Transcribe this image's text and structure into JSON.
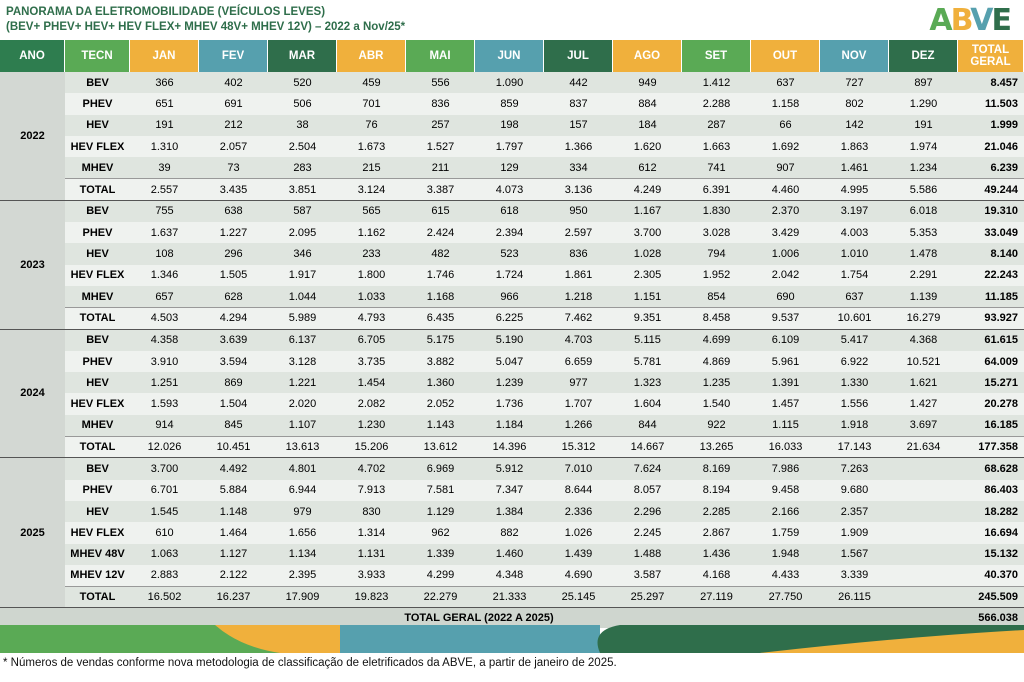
{
  "title": {
    "line1": "PANORAMA DA ELETROMOBILIDADE (VEÍCULOS LEVES)",
    "line2": "(BEV+ PHEV+ HEV+ HEV FLEX+ MHEV 48V+ MHEV 12V) – 2022 a Nov/25*"
  },
  "logo": "ABVE",
  "header": [
    "ANO",
    "TECN",
    "JAN",
    "FEV",
    "MAR",
    "ABR",
    "MAI",
    "JUN",
    "JUL",
    "AGO",
    "SET",
    "OUT",
    "NOV",
    "DEZ",
    "TOTAL GERAL"
  ],
  "header_colors": [
    "#2e7d4f",
    "#5aaa55",
    "#f0b03c",
    "#56a0ae",
    "#2f6e4b",
    "#f0b03c",
    "#5aaa55",
    "#56a0ae",
    "#2f6e4b",
    "#f0b03c",
    "#5aaa55",
    "#f0b03c",
    "#56a0ae",
    "#2f6e4b",
    "#f0b03c"
  ],
  "years": [
    {
      "year": "2022",
      "rows": [
        {
          "tecn": "BEV",
          "values": [
            "366",
            "402",
            "520",
            "459",
            "556",
            "1.090",
            "442",
            "949",
            "1.412",
            "637",
            "727",
            "897"
          ],
          "total": "8.457"
        },
        {
          "tecn": "PHEV",
          "values": [
            "651",
            "691",
            "506",
            "701",
            "836",
            "859",
            "837",
            "884",
            "2.288",
            "1.158",
            "802",
            "1.290"
          ],
          "total": "11.503"
        },
        {
          "tecn": "HEV",
          "values": [
            "191",
            "212",
            "38",
            "76",
            "257",
            "198",
            "157",
            "184",
            "287",
            "66",
            "142",
            "191"
          ],
          "total": "1.999"
        },
        {
          "tecn": "HEV FLEX",
          "values": [
            "1.310",
            "2.057",
            "2.504",
            "1.673",
            "1.527",
            "1.797",
            "1.366",
            "1.620",
            "1.663",
            "1.692",
            "1.863",
            "1.974"
          ],
          "total": "21.046"
        },
        {
          "tecn": "MHEV",
          "values": [
            "39",
            "73",
            "283",
            "215",
            "211",
            "129",
            "334",
            "612",
            "741",
            "907",
            "1.461",
            "1.234"
          ],
          "total": "6.239"
        },
        {
          "tecn": "TOTAL",
          "values": [
            "2.557",
            "3.435",
            "3.851",
            "3.124",
            "3.387",
            "4.073",
            "3.136",
            "4.249",
            "6.391",
            "4.460",
            "4.995",
            "5.586"
          ],
          "total": "49.244"
        }
      ]
    },
    {
      "year": "2023",
      "rows": [
        {
          "tecn": "BEV",
          "values": [
            "755",
            "638",
            "587",
            "565",
            "615",
            "618",
            "950",
            "1.167",
            "1.830",
            "2.370",
            "3.197",
            "6.018"
          ],
          "total": "19.310"
        },
        {
          "tecn": "PHEV",
          "values": [
            "1.637",
            "1.227",
            "2.095",
            "1.162",
            "2.424",
            "2.394",
            "2.597",
            "3.700",
            "3.028",
            "3.429",
            "4.003",
            "5.353"
          ],
          "total": "33.049"
        },
        {
          "tecn": "HEV",
          "values": [
            "108",
            "296",
            "346",
            "233",
            "482",
            "523",
            "836",
            "1.028",
            "794",
            "1.006",
            "1.010",
            "1.478"
          ],
          "total": "8.140"
        },
        {
          "tecn": "HEV FLEX",
          "values": [
            "1.346",
            "1.505",
            "1.917",
            "1.800",
            "1.746",
            "1.724",
            "1.861",
            "2.305",
            "1.952",
            "2.042",
            "1.754",
            "2.291"
          ],
          "total": "22.243"
        },
        {
          "tecn": "MHEV",
          "values": [
            "657",
            "628",
            "1.044",
            "1.033",
            "1.168",
            "966",
            "1.218",
            "1.151",
            "854",
            "690",
            "637",
            "1.139"
          ],
          "total": "11.185"
        },
        {
          "tecn": "TOTAL",
          "values": [
            "4.503",
            "4.294",
            "5.989",
            "4.793",
            "6.435",
            "6.225",
            "7.462",
            "9.351",
            "8.458",
            "9.537",
            "10.601",
            "16.279"
          ],
          "total": "93.927"
        }
      ]
    },
    {
      "year": "2024",
      "rows": [
        {
          "tecn": "BEV",
          "values": [
            "4.358",
            "3.639",
            "6.137",
            "6.705",
            "5.175",
            "5.190",
            "4.703",
            "5.115",
            "4.699",
            "6.109",
            "5.417",
            "4.368"
          ],
          "total": "61.615"
        },
        {
          "tecn": "PHEV",
          "values": [
            "3.910",
            "3.594",
            "3.128",
            "3.735",
            "3.882",
            "5.047",
            "6.659",
            "5.781",
            "4.869",
            "5.961",
            "6.922",
            "10.521"
          ],
          "total": "64.009"
        },
        {
          "tecn": "HEV",
          "values": [
            "1.251",
            "869",
            "1.221",
            "1.454",
            "1.360",
            "1.239",
            "977",
            "1.323",
            "1.235",
            "1.391",
            "1.330",
            "1.621"
          ],
          "total": "15.271"
        },
        {
          "tecn": "HEV FLEX",
          "values": [
            "1.593",
            "1.504",
            "2.020",
            "2.082",
            "2.052",
            "1.736",
            "1.707",
            "1.604",
            "1.540",
            "1.457",
            "1.556",
            "1.427"
          ],
          "total": "20.278"
        },
        {
          "tecn": "MHEV",
          "values": [
            "914",
            "845",
            "1.107",
            "1.230",
            "1.143",
            "1.184",
            "1.266",
            "844",
            "922",
            "1.115",
            "1.918",
            "3.697"
          ],
          "total": "16.185"
        },
        {
          "tecn": "TOTAL",
          "values": [
            "12.026",
            "10.451",
            "13.613",
            "15.206",
            "13.612",
            "14.396",
            "15.312",
            "14.667",
            "13.265",
            "16.033",
            "17.143",
            "21.634"
          ],
          "total": "177.358"
        }
      ]
    },
    {
      "year": "2025",
      "rows": [
        {
          "tecn": "BEV",
          "values": [
            "3.700",
            "4.492",
            "4.801",
            "4.702",
            "6.969",
            "5.912",
            "7.010",
            "7.624",
            "8.169",
            "7.986",
            "7.263",
            ""
          ],
          "total": "68.628"
        },
        {
          "tecn": "PHEV",
          "values": [
            "6.701",
            "5.884",
            "6.944",
            "7.913",
            "7.581",
            "7.347",
            "8.644",
            "8.057",
            "8.194",
            "9.458",
            "9.680",
            ""
          ],
          "total": "86.403"
        },
        {
          "tecn": "HEV",
          "values": [
            "1.545",
            "1.148",
            "979",
            "830",
            "1.129",
            "1.384",
            "2.336",
            "2.296",
            "2.285",
            "2.166",
            "2.357",
            ""
          ],
          "total": "18.282"
        },
        {
          "tecn": "HEV FLEX",
          "values": [
            "610",
            "1.464",
            "1.656",
            "1.314",
            "962",
            "882",
            "1.026",
            "2.245",
            "2.867",
            "1.759",
            "1.909",
            ""
          ],
          "total": "16.694"
        },
        {
          "tecn": "MHEV 48V",
          "values": [
            "1.063",
            "1.127",
            "1.134",
            "1.131",
            "1.339",
            "1.460",
            "1.439",
            "1.488",
            "1.436",
            "1.948",
            "1.567",
            ""
          ],
          "total": "15.132"
        },
        {
          "tecn": "MHEV 12V",
          "values": [
            "2.883",
            "2.122",
            "2.395",
            "3.933",
            "4.299",
            "4.348",
            "4.690",
            "3.587",
            "4.168",
            "4.433",
            "3.339",
            ""
          ],
          "total": "40.370"
        },
        {
          "tecn": "TOTAL",
          "values": [
            "16.502",
            "16.237",
            "17.909",
            "19.823",
            "22.279",
            "21.333",
            "25.145",
            "25.297",
            "27.119",
            "27.750",
            "26.115",
            ""
          ],
          "total": "245.509"
        }
      ]
    }
  ],
  "grand_total": {
    "label": "TOTAL GERAL (2022 A 2025)",
    "value": "566.038"
  },
  "footnote": "* Números de vendas conforme nova metodologia de classificação de eletrificados da ABVE, a partir de janeiro de 2025."
}
